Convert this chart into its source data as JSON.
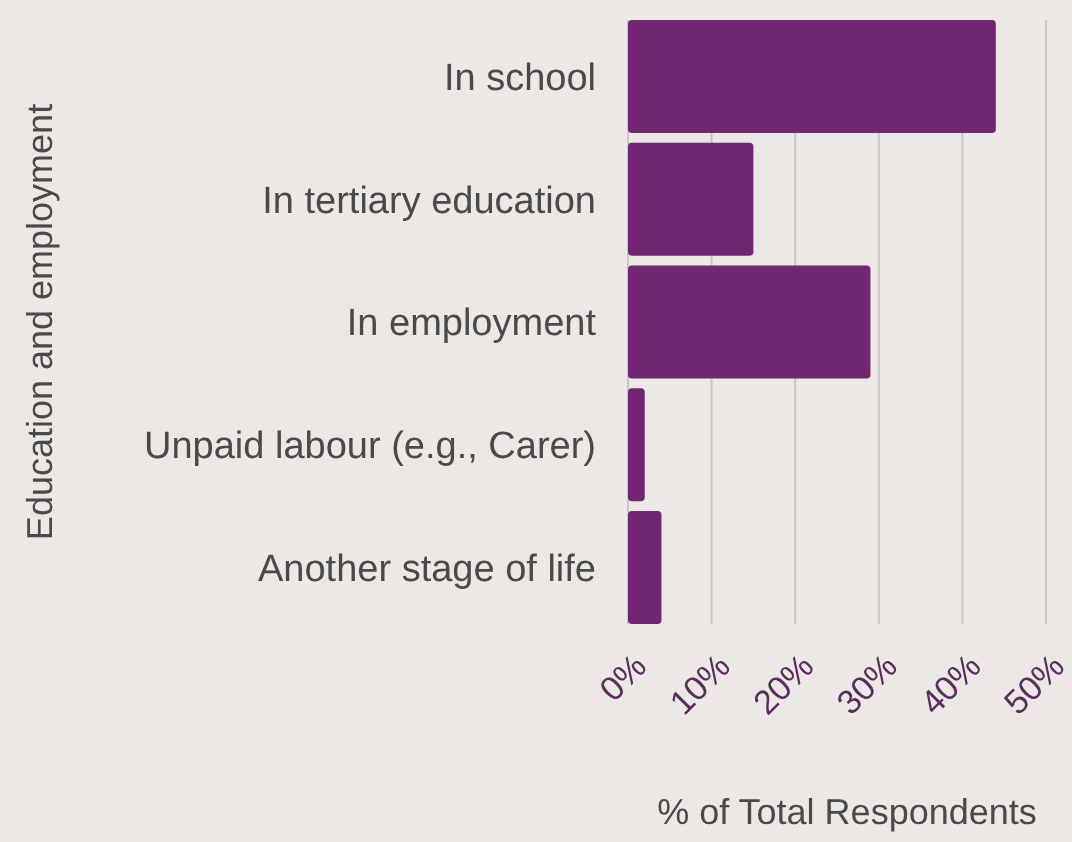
{
  "chart_data": {
    "type": "bar",
    "orientation": "horizontal",
    "categories": [
      "In school",
      "In tertiary education",
      "In employment",
      "Unpaid labour (e.g., Carer)",
      "Another stage of life"
    ],
    "values": [
      44,
      15,
      29,
      2,
      4
    ],
    "color": "#702673",
    "xlim": [
      0,
      50
    ],
    "xticks": [
      {
        "value": 0,
        "label": "0%"
      },
      {
        "value": 10,
        "label": "10%"
      },
      {
        "value": 20,
        "label": "20%"
      },
      {
        "value": 30,
        "label": "30%"
      },
      {
        "value": 40,
        "label": "40%"
      },
      {
        "value": 50,
        "label": "50%"
      }
    ],
    "xlabel": "% of Total Respondents",
    "ylabel": "Education and employment",
    "grid": "x"
  }
}
